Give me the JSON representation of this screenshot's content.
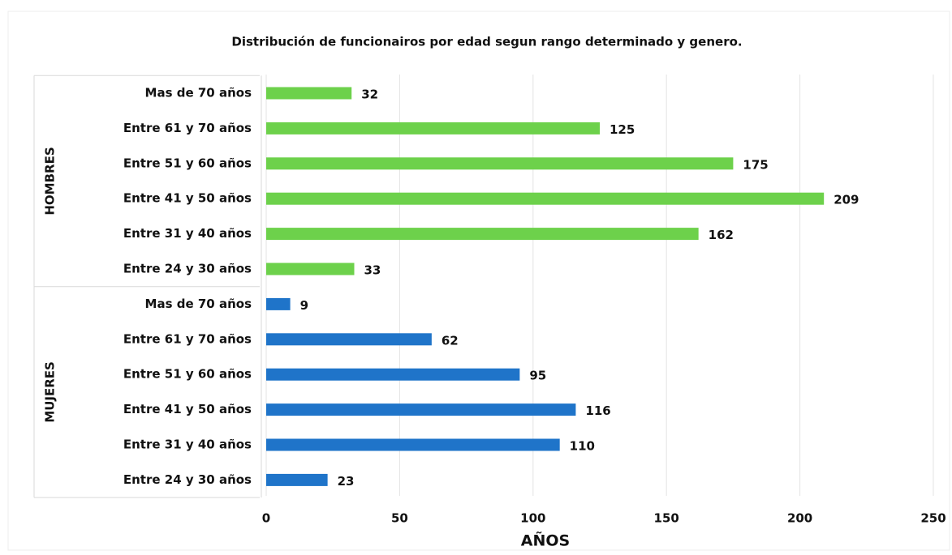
{
  "chart_data": {
    "type": "bar",
    "orientation": "horizontal",
    "title": "Distribución de funcionairos por edad segun rango determinado y genero.",
    "x_label": "AÑOS",
    "groups": [
      {
        "name": "HOMBRES",
        "color": "#6dd14b",
        "categories": [
          "Mas de 70 años",
          "Entre 61 y 70 años",
          "Entre 51 y 60 años",
          "Entre 41 y 50 años",
          "Entre 31 y 40 años",
          "Entre 24 y 30 años"
        ],
        "values": [
          32,
          125,
          175,
          209,
          162,
          33
        ]
      },
      {
        "name": "MUJERES",
        "color": "#1f74c9",
        "categories": [
          "Mas de 70 años",
          "Entre 61 y 70 años",
          "Entre 51 y 60 años",
          "Entre 41 y 50 años",
          "Entre 31 y 40 años",
          "Entre 24 y 30 años"
        ],
        "values": [
          9,
          62,
          95,
          116,
          110,
          23
        ]
      }
    ],
    "xlim": [
      0,
      250
    ],
    "xticks": [
      0,
      50,
      100,
      150,
      200,
      250
    ],
    "grid": true
  }
}
